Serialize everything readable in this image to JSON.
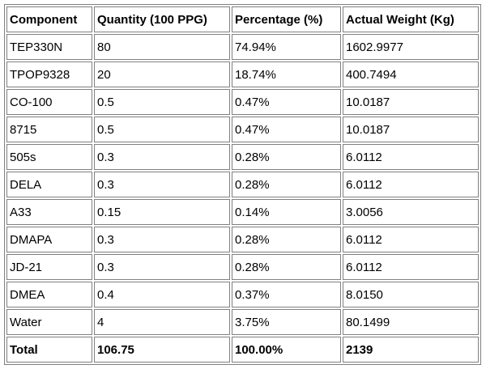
{
  "table": {
    "header": [
      "Component",
      "Quantity (100 PPG)",
      "Percentage (%)",
      "Actual Weight (Kg)"
    ],
    "rows": [
      [
        "TEP330N",
        "80",
        "74.94%",
        "1602.9977"
      ],
      [
        "TPOP9328",
        "20",
        "18.74%",
        "400.7494"
      ],
      [
        "CO-100",
        "0.5",
        "0.47%",
        "10.0187"
      ],
      [
        "8715",
        "0.5",
        "0.47%",
        "10.0187"
      ],
      [
        "505s",
        "0.3",
        "0.28%",
        "6.0112"
      ],
      [
        "DELA",
        "0.3",
        "0.28%",
        "6.0112"
      ],
      [
        "A33",
        "0.15",
        "0.14%",
        "3.0056"
      ],
      [
        "DMAPA",
        "0.3",
        "0.28%",
        "6.0112"
      ],
      [
        "JD-21",
        "0.3",
        "0.28%",
        "6.0112"
      ],
      [
        "DMEA",
        "0.4",
        "0.37%",
        "8.0150"
      ],
      [
        "Water",
        "4",
        "3.75%",
        "80.1499"
      ]
    ],
    "total": [
      "Total",
      "106.75",
      "100.00%",
      "2139"
    ]
  }
}
